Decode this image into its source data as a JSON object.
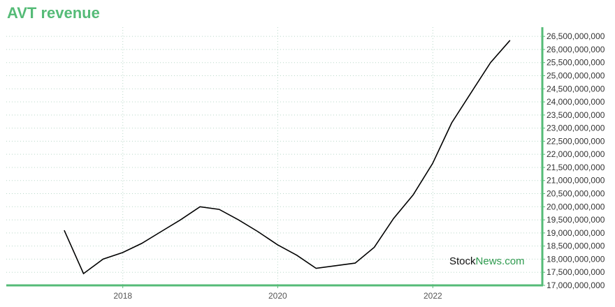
{
  "title": "AVT revenue",
  "watermark": {
    "part1": "Stock",
    "part2": "News.com"
  },
  "colors": {
    "accent": "#55bb77",
    "line": "#000000",
    "grid": "#b8d8c8",
    "watermark_dark": "#111111",
    "watermark_green": "#2e9a4e"
  },
  "chart_data": {
    "type": "line",
    "title": "AVT revenue",
    "xlabel": "",
    "ylabel": "",
    "x_ticks": [
      "2018",
      "2020",
      "2022"
    ],
    "y_ticks": [
      17000000000,
      17500000000,
      18000000000,
      18500000000,
      19000000000,
      19500000000,
      20000000000,
      20500000000,
      21000000000,
      21500000000,
      22000000000,
      22500000000,
      23000000000,
      23500000000,
      24000000000,
      24500000000,
      25000000000,
      25500000000,
      26000000000,
      26500000000
    ],
    "y_tick_labels": [
      "17,000,000,000",
      "17,500,000,000",
      "18,000,000,000",
      "18,500,000,000",
      "19,000,000,000",
      "19,500,000,000",
      "20,000,000,000",
      "20,500,000,000",
      "21,000,000,000",
      "21,500,000,000",
      "22,000,000,000",
      "22,500,000,000",
      "23,000,000,000",
      "23,500,000,000",
      "24,000,000,000",
      "24,500,000,000",
      "25,000,000,000",
      "25,500,000,000",
      "26,000,000,000",
      "26,500,000,000"
    ],
    "xlim": [
      "2016-07-01",
      "2023-06-01"
    ],
    "ylim": [
      17000000000,
      26850000000
    ],
    "grid": true,
    "y_axis_side": "right",
    "series": [
      {
        "x": [
          "2017-03-31",
          "2017-06-30",
          "2017-09-30",
          "2017-12-31",
          "2018-03-31",
          "2018-06-30",
          "2018-09-30",
          "2018-12-31",
          "2019-03-31",
          "2019-06-30",
          "2019-09-30",
          "2019-12-31",
          "2020-03-31",
          "2020-06-30",
          "2020-09-30",
          "2020-12-31",
          "2021-03-31",
          "2021-06-30",
          "2021-09-30",
          "2021-12-31",
          "2022-03-31",
          "2022-06-30",
          "2022-09-30",
          "2022-12-31"
        ],
        "values": [
          19100000000,
          17450000000,
          18000000000,
          18250000000,
          18600000000,
          19050000000,
          19500000000,
          20000000000,
          19900000000,
          19500000000,
          19050000000,
          18550000000,
          18150000000,
          17650000000,
          17750000000,
          17850000000,
          18450000000,
          19550000000,
          20450000000,
          21650000000,
          23200000000,
          24350000000,
          25500000000,
          26350000000
        ]
      }
    ]
  }
}
